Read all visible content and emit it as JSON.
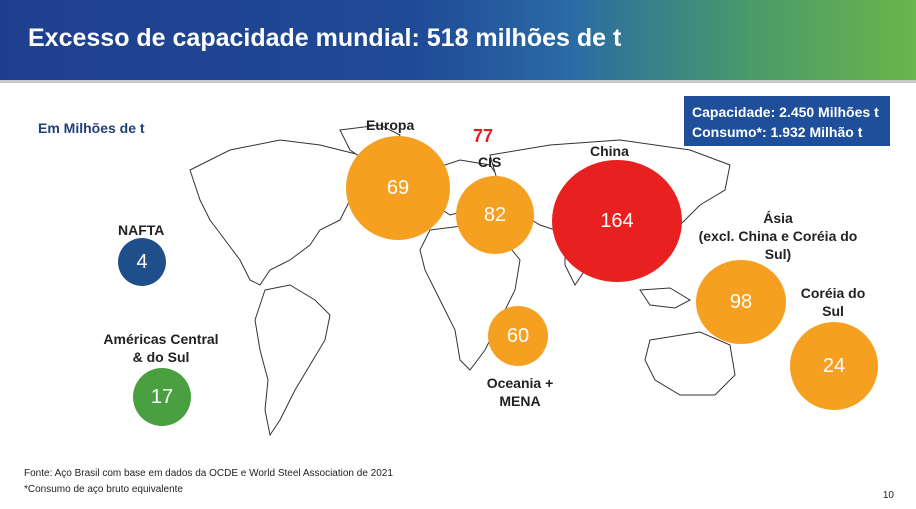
{
  "header": {
    "title": "Excesso de capacidade mundial: 518 milhões de t"
  },
  "units": "Em Milhões de t",
  "capacity_box": {
    "line1": "Capacidade: 2.450 Milhões t",
    "line2": "Consumo*: 1.932 Milhão t"
  },
  "regions": [
    {
      "name": "NAFTA",
      "value": "4",
      "color": "#1f4f8a"
    },
    {
      "name": "Américas Central & do Sul",
      "value": "17",
      "color": "#4aa040"
    },
    {
      "name": "Europa",
      "value": "69",
      "color": "#f5a020"
    },
    {
      "name": "CIS",
      "value": "82",
      "color": "#f5a020"
    },
    {
      "name": "China",
      "value": "164",
      "color": "#e82020"
    },
    {
      "name": "Oceania + MENA",
      "value": "60",
      "color": "#f5a020"
    },
    {
      "name": "Ásia (excl. China e Coréia do Sul)",
      "value": "98",
      "color": "#f5a020"
    },
    {
      "name": "Coréia do Sul",
      "value": "24",
      "color": "#f5a020"
    }
  ],
  "labels": {
    "nafta": "NAFTA",
    "americas_l1": "Américas Central",
    "americas_l2": "& do Sul",
    "europa": "Europa",
    "cis": "CIS",
    "cis_extra": "77",
    "china": "China",
    "asia_l1": "Ásia",
    "asia_l2": "(excl. China e Coréia do",
    "asia_l3": "Sul)",
    "coreia_l1": "Coréia do",
    "coreia_l2": "Sul",
    "oceania_l1": "Oceania +",
    "oceania_l2": "MENA"
  },
  "footer": {
    "source": "Fonte: Aço Brasil com base em dados da OCDE e World Steel Association de 2021",
    "note": "*Consumo de aço bruto equivalente",
    "page": "10"
  }
}
